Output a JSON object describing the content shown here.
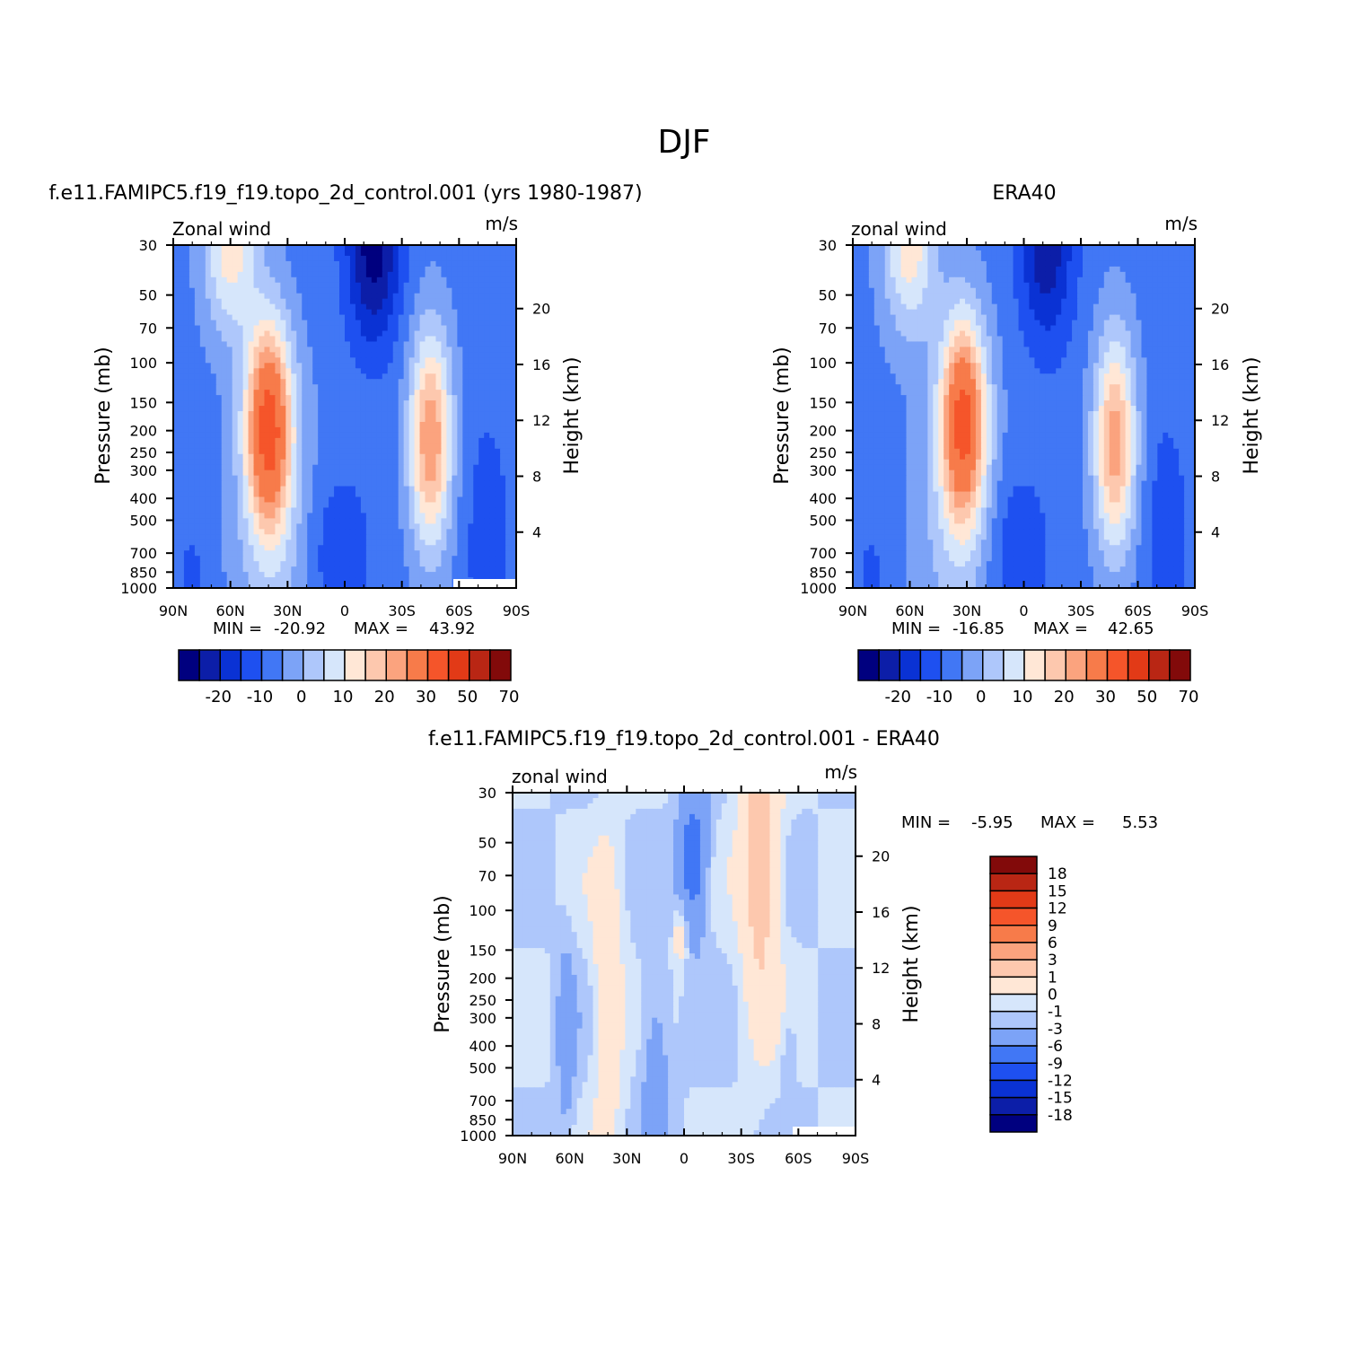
{
  "figure": {
    "title": "DJF"
  },
  "chart_data": [
    {
      "type": "heatmap",
      "id": "model",
      "title": "f.e11.FAMIPC5.f19_f19.topo_2d_control.001 (yrs 1980-1987)",
      "left_label": "Zonal wind",
      "right_label": "m/s",
      "ylabel": "Pressure (mb)",
      "ylabel_right": "Height (km)",
      "x_ticks": [
        "90N",
        "60N",
        "30N",
        "0",
        "30S",
        "60S",
        "90S"
      ],
      "y_ticks": [
        "30",
        "50",
        "70",
        "100",
        "150",
        "200",
        "250",
        "300",
        "400",
        "500",
        "700",
        "850",
        "1000"
      ],
      "y_right_ticks": [
        "20",
        "16",
        "12",
        "8",
        "4"
      ],
      "min_label": "MIN = ",
      "min_value": "-20.92",
      "max_label": "MAX = ",
      "max_value": "43.92",
      "colorbar": {
        "orientation": "horizontal",
        "tick_labels": [
          "-20",
          "-10",
          "0",
          "10",
          "20",
          "30",
          "50",
          "70"
        ],
        "colors": [
          "#00007f",
          "#0c1ea8",
          "#0a32d4",
          "#1e50f0",
          "#4177f5",
          "#7ca3f7",
          "#aec7fb",
          "#d6e6fb",
          "#ffe7d6",
          "#fdc8ae",
          "#fba37e",
          "#f77b4a",
          "#f5552a",
          "#e23a17",
          "#b92614",
          "#820a0a"
        ]
      },
      "jets": [
        {
          "lat": 40,
          "pressure": 190,
          "peak": 43.9
        },
        {
          "lat": 60,
          "pressure": 30,
          "peak": 20
        },
        {
          "lat": -45,
          "pressure": 220,
          "peak": 32
        }
      ],
      "easterly_min": {
        "lat": -15,
        "pressure": 30,
        "value": -20.9
      }
    },
    {
      "type": "heatmap",
      "id": "obs",
      "title": "ERA40",
      "left_label": "zonal wind",
      "right_label": "m/s",
      "ylabel": "Pressure (mb)",
      "ylabel_right": "Height (km)",
      "x_ticks": [
        "90N",
        "60N",
        "30N",
        "0",
        "30S",
        "60S",
        "90S"
      ],
      "y_ticks": [
        "30",
        "50",
        "70",
        "100",
        "150",
        "200",
        "250",
        "300",
        "400",
        "500",
        "700",
        "850",
        "1000"
      ],
      "y_right_ticks": [
        "20",
        "16",
        "12",
        "8",
        "4"
      ],
      "min_label": "MIN = ",
      "min_value": "-16.85",
      "max_label": "MAX = ",
      "max_value": "42.65",
      "colorbar": {
        "orientation": "horizontal",
        "tick_labels": [
          "-20",
          "-10",
          "0",
          "10",
          "20",
          "30",
          "50",
          "70"
        ],
        "colors": [
          "#00007f",
          "#0c1ea8",
          "#0a32d4",
          "#1e50f0",
          "#4177f5",
          "#7ca3f7",
          "#aec7fb",
          "#d6e6fb",
          "#ffe7d6",
          "#fdc8ae",
          "#fba37e",
          "#f77b4a",
          "#f5552a",
          "#e23a17",
          "#b92614",
          "#820a0a"
        ]
      },
      "jets": [
        {
          "lat": 32,
          "pressure": 180,
          "peak": 42.6
        },
        {
          "lat": 60,
          "pressure": 30,
          "peak": 20
        },
        {
          "lat": -48,
          "pressure": 230,
          "peak": 30
        }
      ],
      "easterly_min": {
        "lat": -12,
        "pressure": 30,
        "value": -16.9
      }
    },
    {
      "type": "heatmap",
      "id": "diff",
      "title": "f.e11.FAMIPC5.f19_f19.topo_2d_control.001 - ERA40",
      "left_label": "zonal wind",
      "right_label": "m/s",
      "ylabel": "Pressure (mb)",
      "ylabel_right": "Height (km)",
      "x_ticks": [
        "90N",
        "60N",
        "30N",
        "0",
        "30S",
        "60S",
        "90S"
      ],
      "y_ticks": [
        "30",
        "50",
        "70",
        "100",
        "150",
        "200",
        "250",
        "300",
        "400",
        "500",
        "700",
        "850",
        "1000"
      ],
      "y_right_ticks": [
        "20",
        "16",
        "12",
        "8",
        "4"
      ],
      "min_label": "MIN = ",
      "min_value": "-5.95",
      "max_label": "MAX = ",
      "max_value": "5.53",
      "colorbar": {
        "orientation": "vertical",
        "tick_labels": [
          "18",
          "15",
          "12",
          "9",
          "6",
          "3",
          "1",
          "0",
          "-1",
          "-3",
          "-6",
          "-9",
          "-12",
          "-15",
          "-18"
        ],
        "colors": [
          "#820a0a",
          "#b92614",
          "#e23a17",
          "#f5552a",
          "#f77b4a",
          "#fba37e",
          "#fdc8ae",
          "#ffe7d6",
          "#d6e6fb",
          "#aec7fb",
          "#7ca3f7",
          "#4177f5",
          "#1e50f0",
          "#0a32d4",
          "#0c1ea8",
          "#00007f"
        ]
      }
    }
  ]
}
